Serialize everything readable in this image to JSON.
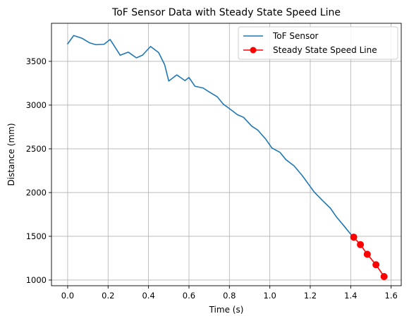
{
  "chart_data": {
    "type": "line",
    "title": "ToF Sensor Data with Steady State Speed Line",
    "xlabel": "Time (s)",
    "ylabel": "Distance (mm)",
    "xlim": [
      -0.08,
      1.65
    ],
    "ylim": [
      935,
      3935
    ],
    "xticks": [
      0.0,
      0.2,
      0.4,
      0.6,
      0.8,
      1.0,
      1.2,
      1.4,
      1.6
    ],
    "xtick_labels": [
      "0.0",
      "0.2",
      "0.4",
      "0.6",
      "0.8",
      "1.0",
      "1.2",
      "1.4",
      "1.6"
    ],
    "yticks": [
      1000,
      1500,
      2000,
      2500,
      3000,
      3500
    ],
    "ytick_labels": [
      "1000",
      "1500",
      "2000",
      "2500",
      "3000",
      "3500"
    ],
    "grid": true,
    "legend_position": "top-right",
    "series": [
      {
        "name": "ToF Sensor",
        "color": "#1f77b4",
        "marker": "none",
        "x": [
          0.0,
          0.03,
          0.07,
          0.11,
          0.14,
          0.18,
          0.21,
          0.26,
          0.3,
          0.34,
          0.37,
          0.41,
          0.45,
          0.48,
          0.5,
          0.54,
          0.58,
          0.6,
          0.63,
          0.67,
          0.7,
          0.74,
          0.77,
          0.8,
          0.84,
          0.87,
          0.91,
          0.94,
          0.98,
          1.01,
          1.05,
          1.08,
          1.12,
          1.16,
          1.19,
          1.22,
          1.26,
          1.3,
          1.33,
          1.37,
          1.41
        ],
        "y": [
          3700,
          3795,
          3765,
          3710,
          3690,
          3695,
          3750,
          3570,
          3605,
          3540,
          3570,
          3670,
          3600,
          3460,
          3275,
          3345,
          3280,
          3315,
          3215,
          3195,
          3150,
          3095,
          3010,
          2960,
          2890,
          2860,
          2760,
          2715,
          2610,
          2510,
          2460,
          2375,
          2305,
          2195,
          2100,
          2005,
          1910,
          1820,
          1720,
          1610,
          1495
        ]
      },
      {
        "name": "Steady State Speed Line",
        "color": "#ff0000",
        "marker": "circle",
        "x": [
          1.415,
          1.448,
          1.482,
          1.525,
          1.565
        ],
        "y": [
          1490,
          1405,
          1295,
          1175,
          1040
        ]
      }
    ]
  }
}
